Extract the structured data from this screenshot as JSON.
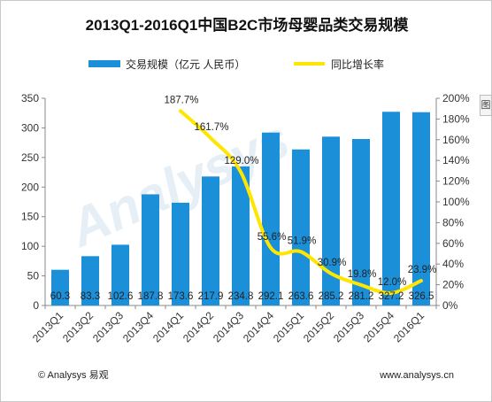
{
  "chart_data": {
    "type": "bar",
    "title": "2013Q1-2016Q1中国B2C市场母婴品类交易规模",
    "categories": [
      "2013Q1",
      "2013Q2",
      "2013Q3",
      "2013Q4",
      "2014Q1",
      "2014Q2",
      "2014Q3",
      "2014Q4",
      "2015Q1",
      "2015Q2",
      "2015Q3",
      "2015Q4",
      "2016Q1"
    ],
    "series": [
      {
        "name": "交易规模（亿元 人民币）",
        "type": "bar",
        "axis": "left",
        "color": "#1c8fd9",
        "values": [
          60.3,
          83.3,
          102.6,
          187.8,
          173.6,
          217.9,
          234.8,
          292.1,
          263.6,
          285.2,
          281.2,
          327.2,
          326.5
        ],
        "labels": [
          "60.3",
          "83.3",
          "102.6",
          "187.8",
          "173.6",
          "217.9",
          "234.8",
          "292.1",
          "263.6",
          "285.2",
          "281.2",
          "327.2",
          "326.5"
        ]
      },
      {
        "name": "同比增长率",
        "type": "line",
        "axis": "right",
        "color": "#ffe600",
        "values": [
          null,
          null,
          null,
          null,
          187.7,
          161.7,
          129.0,
          55.6,
          51.9,
          30.9,
          19.8,
          12.0,
          23.9
        ],
        "labels": [
          "",
          "",
          "",
          "",
          "187.7%",
          "161.7%",
          "129.0%",
          "55.6%",
          "51.9%",
          "30.9%",
          "19.8%",
          "12.0%",
          "23.9%"
        ]
      }
    ],
    "y_left": {
      "min": 0,
      "max": 350,
      "ticks": [
        "0",
        "50",
        "100",
        "150",
        "200",
        "250",
        "300",
        "350"
      ]
    },
    "y_right": {
      "min": 0,
      "max": 200,
      "ticks": [
        "0%",
        "20%",
        "40%",
        "60%",
        "80%",
        "100%",
        "120%",
        "140%",
        "160%",
        "180%",
        "200%"
      ]
    },
    "grid": false,
    "legend_placement": "top"
  },
  "footer": {
    "left": "© Analysys 易观",
    "right": "www.analysys.cn"
  },
  "watermark": "Analysys",
  "side_tab": {
    "label": "图"
  }
}
